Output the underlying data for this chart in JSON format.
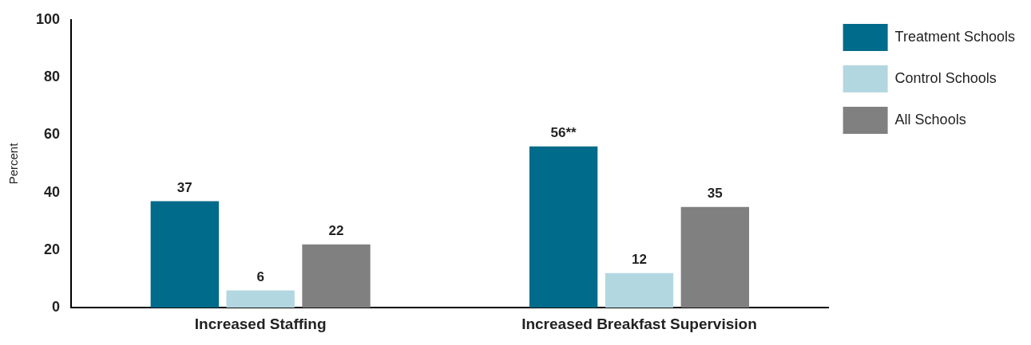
{
  "chart_data": {
    "type": "bar",
    "ylabel": "Percent",
    "categories": [
      "Increased Staffing",
      "Increased Breakfast Supervision"
    ],
    "series": [
      {
        "name": "Treatment Schools",
        "color": "#006b8a",
        "values": [
          37,
          56
        ],
        "value_labels": [
          "37",
          "56**"
        ]
      },
      {
        "name": "Control Schools",
        "color": "#b3d7e0",
        "values": [
          6,
          12
        ],
        "value_labels": [
          "6",
          "12"
        ]
      },
      {
        "name": "All Schools",
        "color": "#808080",
        "values": [
          22,
          35
        ],
        "value_labels": [
          "22",
          "35"
        ]
      }
    ],
    "ylim": [
      0,
      100
    ],
    "yticks": [
      0,
      20,
      40,
      60,
      80,
      100
    ],
    "grid": false,
    "legend": "top right"
  }
}
